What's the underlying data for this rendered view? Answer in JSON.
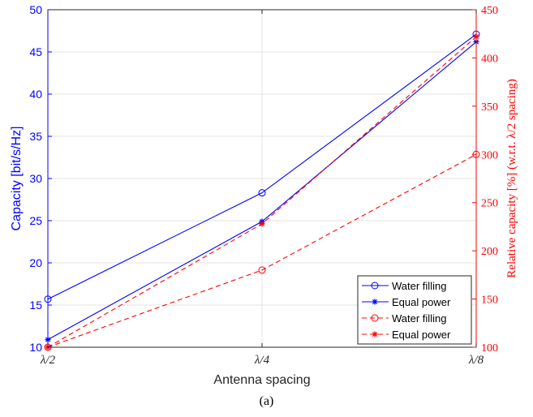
{
  "caption": "(a)",
  "chart_data": {
    "type": "line",
    "x_categories": [
      "λ/2",
      "λ/4",
      "λ/8"
    ],
    "xlabel": "Antenna spacing",
    "y_left": {
      "label": "Capacity [bit/s/Hz]",
      "lim": [
        10,
        50
      ],
      "ticks": [
        10,
        15,
        20,
        25,
        30,
        35,
        40,
        45,
        50
      ],
      "color": "#0000ff"
    },
    "y_right": {
      "label": "Relative capacity [%] (w.r.t. λ/2 spacing)",
      "lim": [
        100,
        450
      ],
      "ticks": [
        100,
        150,
        200,
        250,
        300,
        350,
        400,
        450
      ],
      "color": "#ff0000"
    },
    "grid": true,
    "legend_position": "bottom-right",
    "series": [
      {
        "name": "Water filling",
        "axis": "left",
        "color": "#0000ff",
        "dash": "solid",
        "marker": "circle",
        "values": [
          15.7,
          28.3,
          47.1
        ]
      },
      {
        "name": "Equal power",
        "axis": "left",
        "color": "#0000ff",
        "dash": "solid",
        "marker": "asterisk",
        "values": [
          10.9,
          24.9,
          46.2
        ]
      },
      {
        "name": "Water filling",
        "axis": "right",
        "color": "#ff0000",
        "dash": "dashed",
        "marker": "circle",
        "values": [
          100,
          180,
          300
        ]
      },
      {
        "name": "Equal power",
        "axis": "right",
        "color": "#ff0000",
        "dash": "dashed",
        "marker": "asterisk",
        "values": [
          100,
          228,
          422
        ]
      }
    ]
  }
}
